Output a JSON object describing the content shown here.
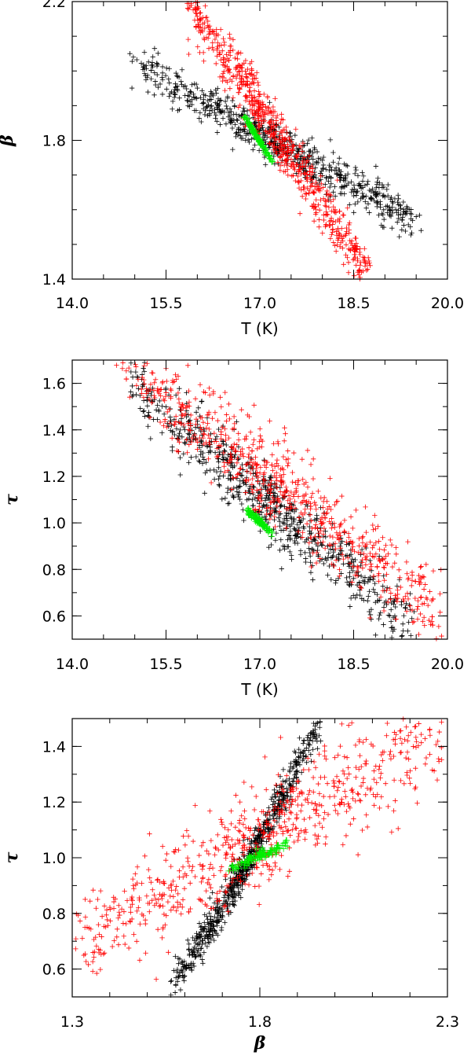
{
  "chart_data": [
    {
      "type": "scatter",
      "title": "",
      "xlabel": "T (K)",
      "ylabel": "β",
      "xlim": [
        14.0,
        20.0
      ],
      "ylim": [
        1.4,
        2.2
      ],
      "xticks": [
        "14.0",
        "15.5",
        "17.0",
        "18.5",
        "20.0"
      ],
      "yticks": [
        "1.4",
        "1.8",
        "2.2"
      ],
      "grid": false,
      "series": [
        {
          "color": "#000000",
          "marker": "+",
          "x_range": [
            15.05,
            19.45
          ],
          "y_range": [
            2.02,
            1.57
          ]
        },
        {
          "color": "#ff0000",
          "marker": "+",
          "x_range": [
            15.85,
            18.75
          ],
          "y_range": [
            2.2,
            1.41
          ]
        },
        {
          "color": "#00ee00",
          "marker": "+",
          "x_range": [
            16.75,
            17.2
          ],
          "y_range": [
            1.87,
            1.74
          ]
        }
      ]
    },
    {
      "type": "scatter",
      "title": "",
      "xlabel": "T (K)",
      "ylabel": "τ",
      "xlim": [
        14.0,
        20.0
      ],
      "ylim": [
        0.5,
        1.7
      ],
      "xticks": [
        "14.0",
        "15.5",
        "17.0",
        "18.5",
        "20.0"
      ],
      "yticks": [
        "0.6",
        "0.8",
        "1.0",
        "1.2",
        "1.4",
        "1.6"
      ],
      "grid": false,
      "series": [
        {
          "color": "#000000",
          "marker": "+",
          "x_range": [
            15.0,
            19.4
          ],
          "y_range": [
            1.58,
            0.57
          ]
        },
        {
          "color": "#ff0000",
          "marker": "+",
          "x_range": [
            14.8,
            19.9
          ],
          "y_range": [
            1.7,
            0.6
          ]
        },
        {
          "color": "#00ee00",
          "marker": "+",
          "x_range": [
            16.8,
            17.2
          ],
          "y_range": [
            1.05,
            0.96
          ]
        }
      ]
    },
    {
      "type": "scatter",
      "title": "",
      "xlabel": "β",
      "ylabel": "τ",
      "xlim": [
        1.3,
        2.3
      ],
      "ylim": [
        0.5,
        1.5
      ],
      "xticks": [
        "1.3",
        "1.8",
        "2.3"
      ],
      "yticks": [
        "0.6",
        "0.8",
        "1.0",
        "1.2",
        "1.4"
      ],
      "grid": false,
      "series": [
        {
          "color": "#000000",
          "marker": "+",
          "x_range": [
            1.57,
            1.96
          ],
          "y_range": [
            0.56,
            1.49
          ]
        },
        {
          "color": "#ff0000",
          "marker": "+",
          "x_range": [
            1.32,
            2.3
          ],
          "y_range": [
            0.7,
            1.46
          ]
        },
        {
          "color": "#00ee00",
          "marker": "+",
          "x_range": [
            1.72,
            1.87
          ],
          "y_range": [
            0.96,
            1.05
          ]
        }
      ]
    }
  ]
}
